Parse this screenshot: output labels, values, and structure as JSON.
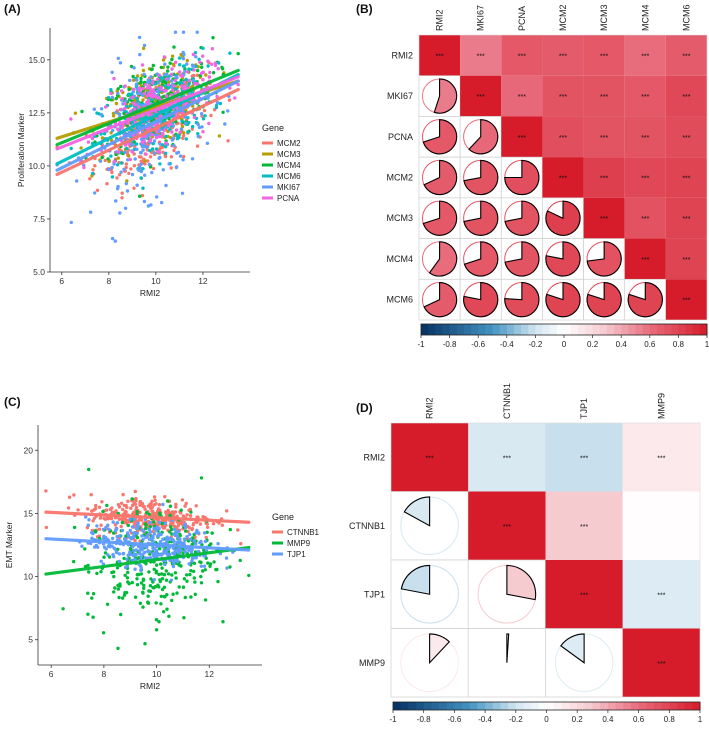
{
  "chart_data": [
    {
      "panel": "(A)",
      "type": "scatter",
      "xlabel": "RMI2",
      "ylabel": "Proliferation Marker",
      "xlim": [
        5.5,
        14
      ],
      "ylim": [
        5,
        16.5
      ],
      "x_ticks": [
        6,
        8,
        10,
        12
      ],
      "y_ticks": [
        5.0,
        7.5,
        10.0,
        12.5,
        15.0
      ],
      "y_tick_labels": [
        "5.0",
        "7.5",
        "10.0",
        "12.5",
        "15.0"
      ],
      "legend_title": "Gene",
      "series": [
        {
          "name": "MCM2",
          "color": "#F8766D",
          "fit": [
            [
              5.8,
              9.6
            ],
            [
              13.5,
              13.6
            ]
          ],
          "center": [
            9.8,
            11.6
          ],
          "spread": [
            1.2,
            1.1
          ]
        },
        {
          "name": "MCM3",
          "color": "#B79F00",
          "fit": [
            [
              5.8,
              11.3
            ],
            [
              13.5,
              14.0
            ]
          ],
          "center": [
            10.0,
            13.0
          ],
          "spread": [
            1.2,
            0.9
          ]
        },
        {
          "name": "MCM4",
          "color": "#00BA38",
          "fit": [
            [
              5.8,
              11.0
            ],
            [
              13.5,
              14.5
            ]
          ],
          "center": [
            10.0,
            13.2
          ],
          "spread": [
            1.2,
            1.0
          ]
        },
        {
          "name": "MCM6",
          "color": "#00BFC4",
          "fit": [
            [
              5.8,
              10.1
            ],
            [
              13.5,
              14.3
            ]
          ],
          "center": [
            10.0,
            12.0
          ],
          "spread": [
            1.2,
            1.0
          ]
        },
        {
          "name": "MKI67",
          "color": "#619CFF",
          "fit": [
            [
              5.8,
              9.8
            ],
            [
              13.5,
              14.0
            ]
          ],
          "center": [
            9.8,
            11.2
          ],
          "spread": [
            1.2,
            1.6
          ]
        },
        {
          "name": "PCNA",
          "color": "#F564E3",
          "fit": [
            [
              5.8,
              10.8
            ],
            [
              13.5,
              14.2
            ]
          ],
          "center": [
            10.0,
            12.8
          ],
          "spread": [
            1.2,
            0.9
          ]
        }
      ]
    },
    {
      "panel": "(C)",
      "type": "scatter",
      "xlabel": "RMI2",
      "ylabel": "EMT Marker",
      "xlim": [
        5.5,
        14
      ],
      "ylim": [
        3,
        22
      ],
      "x_ticks": [
        6,
        8,
        10,
        12
      ],
      "y_ticks": [
        5,
        10,
        15,
        20
      ],
      "y_tick_labels": [
        "5",
        "10",
        "15",
        "20"
      ],
      "legend_title": "Gene",
      "series": [
        {
          "name": "CTNNB1",
          "color": "#F8766D",
          "fit": [
            [
              5.8,
              15.1
            ],
            [
              13.5,
              14.3
            ]
          ],
          "center": [
            9.8,
            14.8
          ],
          "spread": [
            1.2,
            0.8
          ]
        },
        {
          "name": "MMP9",
          "color": "#00BA38",
          "fit": [
            [
              5.8,
              10.2
            ],
            [
              13.5,
              12.3
            ]
          ],
          "center": [
            9.8,
            11.5
          ],
          "spread": [
            1.2,
            2.2
          ]
        },
        {
          "name": "TJP1",
          "color": "#619CFF",
          "fit": [
            [
              5.8,
              13.0
            ],
            [
              13.5,
              12.1
            ]
          ],
          "center": [
            9.8,
            12.6
          ],
          "spread": [
            1.2,
            0.9
          ]
        }
      ]
    },
    {
      "panel": "(B)",
      "type": "heatmap",
      "labels": [
        "RMI2",
        "MKI67",
        "PCNA",
        "MCM2",
        "MCM3",
        "MCM4",
        "MCM6"
      ],
      "matrix": [
        [
          1.0,
          0.55,
          0.7,
          0.68,
          0.7,
          0.6,
          0.68
        ],
        [
          0.55,
          1.0,
          0.62,
          0.72,
          0.72,
          0.7,
          0.78
        ],
        [
          0.7,
          0.62,
          1.0,
          0.75,
          0.72,
          0.72,
          0.76
        ],
        [
          0.68,
          0.72,
          0.75,
          1.0,
          0.82,
          0.78,
          0.8
        ],
        [
          0.7,
          0.72,
          0.72,
          0.82,
          1.0,
          0.73,
          0.8
        ],
        [
          0.6,
          0.7,
          0.72,
          0.78,
          0.73,
          1.0,
          0.8
        ],
        [
          0.68,
          0.78,
          0.76,
          0.8,
          0.8,
          0.8,
          1.0
        ]
      ],
      "upper_annotation": "***",
      "colorbar_ticks": [
        "-1",
        "-0.8",
        "-0.6",
        "-0.4",
        "-0.2",
        "0",
        "0.2",
        "0.4",
        "0.6",
        "0.8",
        "1"
      ],
      "colorbar_range": [
        -1,
        1
      ]
    },
    {
      "panel": "(D)",
      "type": "heatmap",
      "labels": [
        "RMI2",
        "CTNNB1",
        "TJP1",
        "MMP9"
      ],
      "matrix": [
        [
          1.0,
          -0.17,
          -0.22,
          0.12
        ],
        [
          -0.17,
          1.0,
          0.28,
          0.01
        ],
        [
          -0.22,
          0.28,
          1.0,
          -0.15
        ],
        [
          0.12,
          0.01,
          -0.15,
          1.0
        ]
      ],
      "upper_annotation": [
        "",
        "***",
        "***",
        "***",
        "***",
        "",
        "",
        ""
      ],
      "upper_stars": [
        [
          0,
          1,
          "***"
        ],
        [
          0,
          2,
          "***"
        ],
        [
          0,
          3,
          "***"
        ],
        [
          1,
          2,
          "***"
        ],
        [
          2,
          3,
          "***"
        ],
        [
          3,
          3,
          "***"
        ],
        [
          0,
          0,
          "***"
        ],
        [
          1,
          1,
          "***"
        ],
        [
          2,
          2,
          "***"
        ]
      ],
      "colorbar_ticks": [
        "-1",
        "-0.8",
        "-0.6",
        "-0.4",
        "-0.2",
        "0",
        "0.2",
        "0.4",
        "0.6",
        "0.8",
        "1"
      ],
      "colorbar_range": [
        -1,
        1
      ]
    }
  ],
  "panel_labels": {
    "a": "(A)",
    "b": "(B)",
    "c": "(C)",
    "d": "(D)"
  },
  "colors": {
    "positive": "#D7191C",
    "negative": "#2B6CB0",
    "neutral": "#FFFFFF"
  }
}
